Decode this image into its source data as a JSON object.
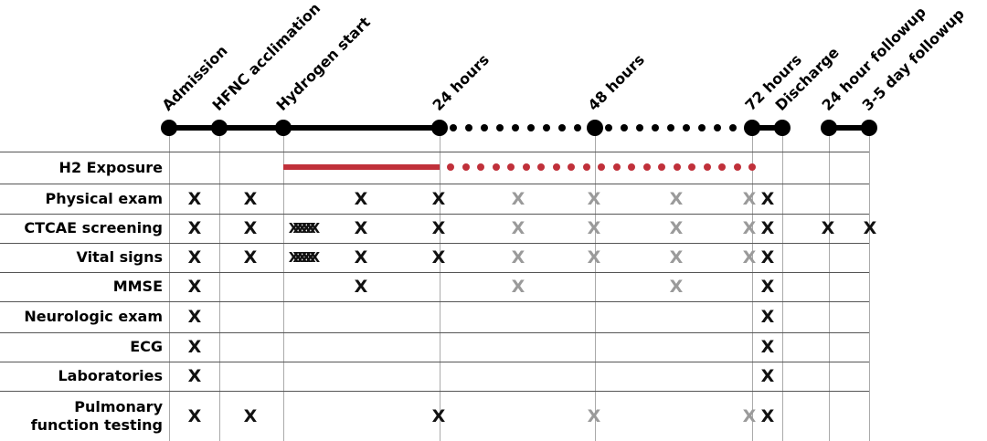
{
  "milestones": [
    {
      "label": "Admission"
    },
    {
      "label": "HFNC acclimation"
    },
    {
      "label": "Hydrogen start"
    },
    {
      "label": "24 hours"
    },
    {
      "label": "48 hours"
    },
    {
      "label": "72 hours"
    },
    {
      "label": "Discharge"
    },
    {
      "label": "24 hour followup"
    },
    {
      "label": "3-5 day followup"
    }
  ],
  "colors": {
    "black": "#111111",
    "gray": "#9a9a9a",
    "red": "#c0303a"
  },
  "rows": [
    {
      "label": "H2 Exposure",
      "marks": []
    },
    {
      "label": "Physical exam",
      "marks": [
        [
          "X",
          "b",
          0
        ],
        [
          "X",
          "b",
          1
        ],
        [
          "X",
          "b",
          2
        ],
        [
          "X",
          "b",
          3
        ],
        [
          "X",
          "g",
          4
        ],
        [
          "X",
          "g",
          5
        ],
        [
          "X",
          "g",
          6
        ],
        [
          "X",
          "g",
          7
        ],
        [
          "X",
          "b",
          8
        ]
      ]
    },
    {
      "label": "CTCAE screening",
      "marks": [
        [
          "X",
          "b",
          0
        ],
        [
          "X",
          "b",
          1
        ],
        [
          "XXXXXX",
          "b",
          9
        ],
        [
          "X",
          "b",
          2
        ],
        [
          "X",
          "b",
          3
        ],
        [
          "X",
          "g",
          4
        ],
        [
          "X",
          "g",
          5
        ],
        [
          "X",
          "g",
          6
        ],
        [
          "X",
          "g",
          7
        ],
        [
          "X",
          "b",
          8
        ],
        [
          "X",
          "b",
          10
        ],
        [
          "X",
          "b",
          11
        ]
      ]
    },
    {
      "label": "Vital signs",
      "marks": [
        [
          "X",
          "b",
          0
        ],
        [
          "X",
          "b",
          1
        ],
        [
          "XXXXXX",
          "b",
          9
        ],
        [
          "X",
          "b",
          2
        ],
        [
          "X",
          "b",
          3
        ],
        [
          "X",
          "g",
          4
        ],
        [
          "X",
          "g",
          5
        ],
        [
          "X",
          "g",
          6
        ],
        [
          "X",
          "g",
          7
        ],
        [
          "X",
          "b",
          8
        ]
      ]
    },
    {
      "label": "MMSE",
      "marks": [
        [
          "X",
          "b",
          0
        ],
        [
          "X",
          "b",
          2
        ],
        [
          "X",
          "g",
          4
        ],
        [
          "X",
          "g",
          6
        ],
        [
          "X",
          "b",
          8
        ]
      ]
    },
    {
      "label": "Neurologic exam",
      "marks": [
        [
          "X",
          "b",
          0
        ],
        [
          "X",
          "b",
          8
        ]
      ]
    },
    {
      "label": "ECG",
      "marks": [
        [
          "X",
          "b",
          0
        ],
        [
          "X",
          "b",
          8
        ]
      ]
    },
    {
      "label": "Laboratories",
      "marks": [
        [
          "X",
          "b",
          0
        ],
        [
          "X",
          "b",
          8
        ]
      ]
    },
    {
      "label": "Pulmonary\nfunction testing",
      "marks": [
        [
          "X",
          "b",
          0
        ],
        [
          "X",
          "b",
          1
        ],
        [
          "X",
          "b",
          3
        ],
        [
          "X",
          "g",
          5
        ],
        [
          "X",
          "g",
          7
        ],
        [
          "X",
          "b",
          8
        ]
      ]
    }
  ]
}
